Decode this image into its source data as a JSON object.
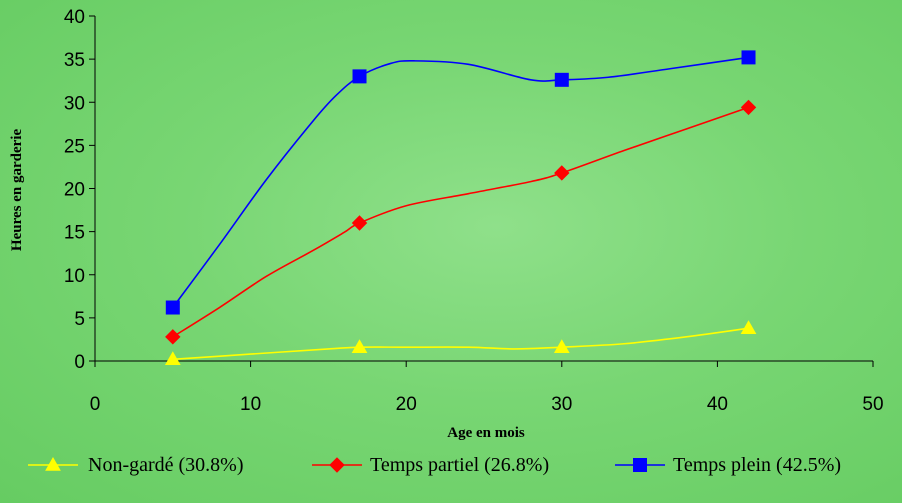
{
  "chart_data": {
    "type": "line",
    "title": "",
    "xlabel": "Age en mois",
    "ylabel": "Heures en garderie",
    "xlim": [
      0,
      50
    ],
    "ylim": [
      0,
      40
    ],
    "xticks": [
      0,
      10,
      20,
      30,
      40,
      50
    ],
    "yticks": [
      0,
      5,
      10,
      15,
      20,
      25,
      30,
      35,
      40
    ],
    "grid": false,
    "legend_position": "bottom",
    "series": [
      {
        "name": "Non-gardé (30.8%)",
        "color": "#ffff00",
        "marker": "triangle",
        "markers": [
          [
            5,
            0.2
          ],
          [
            17,
            1.6
          ],
          [
            30,
            1.6
          ],
          [
            42,
            3.8
          ]
        ],
        "curve": [
          [
            5,
            0.2
          ],
          [
            10,
            0.8
          ],
          [
            15,
            1.4
          ],
          [
            17,
            1.6
          ],
          [
            20,
            1.6
          ],
          [
            24,
            1.6
          ],
          [
            27,
            1.4
          ],
          [
            30,
            1.6
          ],
          [
            34,
            2.0
          ],
          [
            38,
            2.8
          ],
          [
            42,
            3.8
          ]
        ]
      },
      {
        "name": "Temps partiel (26.8%)",
        "color": "#ff0000",
        "marker": "diamond",
        "markers": [
          [
            5,
            2.8
          ],
          [
            17,
            16.0
          ],
          [
            30,
            21.8
          ],
          [
            42,
            29.4
          ]
        ],
        "curve": [
          [
            5,
            2.8
          ],
          [
            8,
            6.2
          ],
          [
            11,
            9.8
          ],
          [
            14,
            12.8
          ],
          [
            16,
            14.9
          ],
          [
            17,
            16.0
          ],
          [
            20,
            18.0
          ],
          [
            24,
            19.4
          ],
          [
            28,
            20.8
          ],
          [
            30,
            21.8
          ],
          [
            34,
            24.4
          ],
          [
            38,
            26.9
          ],
          [
            42,
            29.4
          ]
        ]
      },
      {
        "name": "Temps plein (42.5%)",
        "color": "#0000ff",
        "marker": "square",
        "markers": [
          [
            5,
            6.2
          ],
          [
            17,
            33.0
          ],
          [
            30,
            32.6
          ],
          [
            42,
            35.2
          ]
        ],
        "curve": [
          [
            5,
            6.2
          ],
          [
            8,
            13.5
          ],
          [
            11,
            21.0
          ],
          [
            14,
            27.8
          ],
          [
            15.5,
            30.8
          ],
          [
            17,
            33.0
          ],
          [
            19,
            34.5
          ],
          [
            20.5,
            34.8
          ],
          [
            24,
            34.4
          ],
          [
            28,
            32.6
          ],
          [
            30,
            32.6
          ],
          [
            33,
            32.9
          ],
          [
            37,
            33.9
          ],
          [
            42,
            35.2
          ]
        ]
      }
    ]
  }
}
